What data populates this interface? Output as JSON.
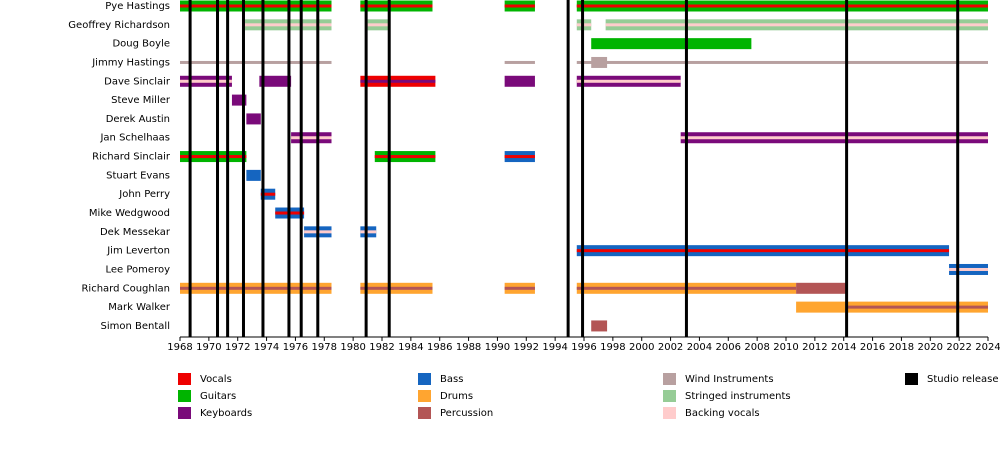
{
  "chart_data": {
    "type": "timeline",
    "xlim": [
      1968,
      2024
    ],
    "xticks": [
      1968,
      1970,
      1972,
      1974,
      1976,
      1978,
      1980,
      1982,
      1984,
      1986,
      1988,
      1990,
      1992,
      1994,
      1996,
      1998,
      2000,
      2002,
      2004,
      2006,
      2008,
      2010,
      2012,
      2014,
      2016,
      2018,
      2020,
      2022,
      2024
    ],
    "legend": [
      {
        "name": "Vocals",
        "color": "#ee0000"
      },
      {
        "name": "Guitars",
        "color": "#00b400"
      },
      {
        "name": "Keyboards",
        "color": "#7a0a7a"
      },
      {
        "name": "Bass",
        "color": "#1565c0"
      },
      {
        "name": "Drums",
        "color": "#ffa530"
      },
      {
        "name": "Percussion",
        "color": "#b35555"
      },
      {
        "name": "Wind Instruments",
        "color": "#b8a0a0"
      },
      {
        "name": "Stringed instruments",
        "color": "#96cc96"
      },
      {
        "name": "Backing vocals",
        "color": "#ffcccc"
      },
      {
        "name": "Studio release",
        "color": "#000000"
      }
    ],
    "releases": [
      1968.7,
      1970.6,
      1971.3,
      1972.4,
      1973.75,
      1975.55,
      1976.4,
      1977.55,
      1980.9,
      1982.5,
      1994.9,
      1995.9,
      2003.1,
      2014.2,
      2021.9
    ],
    "members": [
      {
        "name": "Pye Hastings",
        "periods": [
          {
            "start": 1968,
            "end": 1978.5,
            "roles": [
              1,
              0
            ]
          },
          {
            "start": 1980.5,
            "end": 1985.5,
            "roles": [
              1,
              0
            ]
          },
          {
            "start": 1990.5,
            "end": 1992.6,
            "roles": [
              1,
              0
            ]
          },
          {
            "start": 1995.5,
            "end": 2024,
            "roles": [
              1,
              0
            ]
          }
        ]
      },
      {
        "name": "Geoffrey Richardson",
        "periods": [
          {
            "start": 1972.5,
            "end": 1978.5,
            "roles": [
              7,
              8
            ]
          },
          {
            "start": 1981,
            "end": 1982.5,
            "roles": [
              7,
              8
            ]
          },
          {
            "start": 1995.5,
            "end": 1996.5,
            "roles": [
              7,
              8
            ]
          },
          {
            "start": 1997.5,
            "end": 2024,
            "roles": [
              7,
              8
            ]
          }
        ]
      },
      {
        "name": "Doug Boyle",
        "periods": [
          {
            "start": 1996.5,
            "end": 2007.6,
            "roles": [
              1
            ]
          }
        ]
      },
      {
        "name": "Jimmy Hastings",
        "periods": [
          {
            "start": 1968,
            "end": 1978.5,
            "roles": [
              6
            ],
            "thin": true
          },
          {
            "start": 1990.5,
            "end": 1992.6,
            "roles": [
              6
            ],
            "thin": true
          },
          {
            "start": 1995.5,
            "end": 2024,
            "roles": [
              6
            ],
            "thin": true
          },
          {
            "start": 1996.5,
            "end": 1997.6,
            "roles": [
              6
            ]
          }
        ]
      },
      {
        "name": "Dave Sinclair",
        "periods": [
          {
            "start": 1968,
            "end": 1971.6,
            "roles": [
              2,
              8
            ]
          },
          {
            "start": 1973.5,
            "end": 1975.7,
            "roles": [
              2
            ]
          },
          {
            "start": 1980.5,
            "end": 1985.7,
            "roles": [
              0,
              2
            ]
          },
          {
            "start": 1990.5,
            "end": 1992.6,
            "roles": [
              2
            ]
          },
          {
            "start": 1995.5,
            "end": 2002.7,
            "roles": [
              2,
              8
            ]
          }
        ]
      },
      {
        "name": "Steve Miller",
        "periods": [
          {
            "start": 1971.6,
            "end": 1972.6,
            "roles": [
              2
            ]
          }
        ]
      },
      {
        "name": "Derek Austin",
        "periods": [
          {
            "start": 1972.6,
            "end": 1973.6,
            "roles": [
              2
            ]
          }
        ]
      },
      {
        "name": "Jan Schelhaas",
        "periods": [
          {
            "start": 1975.7,
            "end": 1978.5,
            "roles": [
              2,
              8
            ]
          },
          {
            "start": 2002.7,
            "end": 2024,
            "roles": [
              2,
              8
            ]
          }
        ]
      },
      {
        "name": "Richard Sinclair",
        "periods": [
          {
            "start": 1968,
            "end": 1972.6,
            "roles": [
              1,
              0
            ]
          },
          {
            "start": 1981.5,
            "end": 1985.7,
            "roles": [
              1,
              0
            ]
          },
          {
            "start": 1990.5,
            "end": 1992.6,
            "roles": [
              3,
              0
            ]
          }
        ]
      },
      {
        "name": "Stuart Evans",
        "periods": [
          {
            "start": 1972.6,
            "end": 1973.6,
            "roles": [
              3
            ]
          }
        ]
      },
      {
        "name": "John Perry",
        "periods": [
          {
            "start": 1973.6,
            "end": 1974.6,
            "roles": [
              3,
              0
            ]
          }
        ]
      },
      {
        "name": "Mike Wedgwood",
        "periods": [
          {
            "start": 1974.6,
            "end": 1976.6,
            "roles": [
              3,
              0
            ]
          }
        ]
      },
      {
        "name": "Dek Messekar",
        "periods": [
          {
            "start": 1976.6,
            "end": 1978.5,
            "roles": [
              3,
              8
            ]
          },
          {
            "start": 1980.5,
            "end": 1981.6,
            "roles": [
              3,
              8
            ]
          }
        ]
      },
      {
        "name": "Jim Leverton",
        "periods": [
          {
            "start": 1995.5,
            "end": 2021.3,
            "roles": [
              3,
              0
            ]
          }
        ]
      },
      {
        "name": "Lee Pomeroy",
        "periods": [
          {
            "start": 2021.3,
            "end": 2024,
            "roles": [
              3,
              8
            ]
          }
        ]
      },
      {
        "name": "Richard Coughlan",
        "periods": [
          {
            "start": 1968,
            "end": 1978.5,
            "roles": [
              4,
              5
            ]
          },
          {
            "start": 1980.5,
            "end": 1985.5,
            "roles": [
              4,
              5
            ]
          },
          {
            "start": 1990.5,
            "end": 1992.6,
            "roles": [
              4,
              5
            ]
          },
          {
            "start": 1995.5,
            "end": 2010.7,
            "roles": [
              4,
              5
            ]
          },
          {
            "start": 2010.7,
            "end": 2014.2,
            "roles": [
              5
            ]
          }
        ]
      },
      {
        "name": "Mark Walker",
        "periods": [
          {
            "start": 2010.7,
            "end": 2014.2,
            "roles": [
              4
            ]
          },
          {
            "start": 2014.2,
            "end": 2024,
            "roles": [
              4,
              5
            ]
          }
        ]
      },
      {
        "name": "Simon Bentall",
        "periods": [
          {
            "start": 1996.5,
            "end": 1997.6,
            "roles": [
              5
            ]
          }
        ]
      }
    ]
  }
}
